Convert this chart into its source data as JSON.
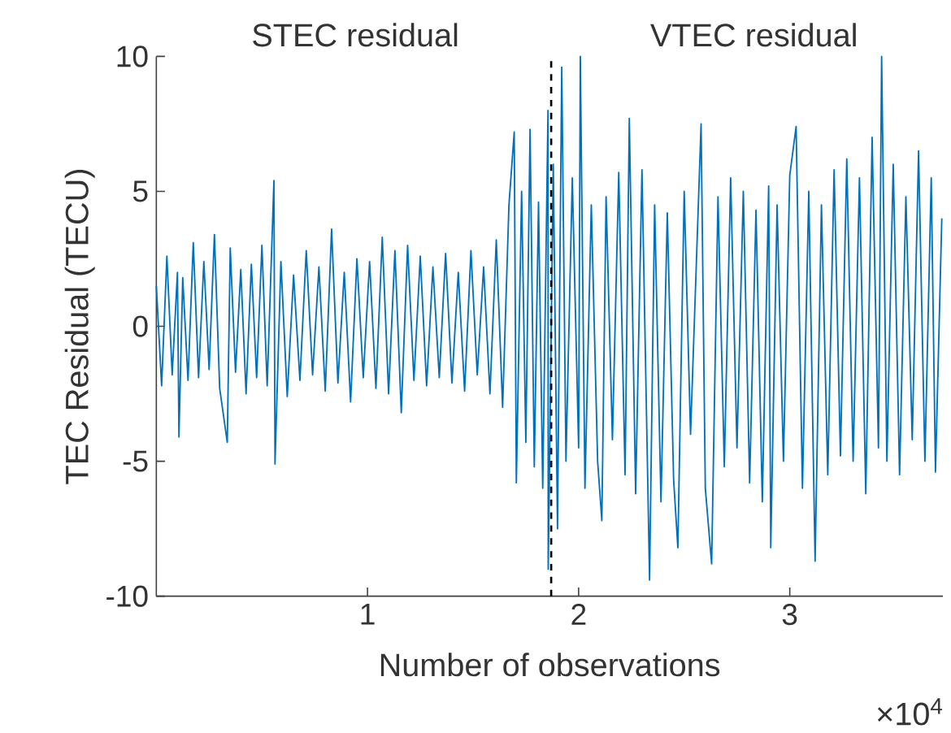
{
  "chart_data": {
    "type": "line",
    "xlabel": "Number of observations",
    "ylabel": "TEC Residual (TECU)",
    "annotations": [
      "STEC residual",
      "VTEC residual",
      "×10$^{4}$"
    ],
    "xlim": [
      0,
      3.725
    ],
    "ylim": [
      -10,
      10
    ],
    "xticks": [
      1,
      2,
      3
    ],
    "yticks": [
      -10,
      -5,
      0,
      5,
      10
    ],
    "grid": false,
    "line_style": "solid",
    "marker": "none",
    "ref_lines": [
      {
        "axis": "x",
        "value": 1.87,
        "color": "#000000",
        "line_style": "dashed"
      }
    ],
    "series": [
      {
        "color": "#0072bd",
        "x": [
          0,
          0.025,
          0.05,
          0.075,
          0.1,
          0.107,
          0.125,
          0.15,
          0.175,
          0.2,
          0.225,
          0.25,
          0.275,
          0.3,
          0.336,
          0.35,
          0.375,
          0.4,
          0.425,
          0.45,
          0.475,
          0.5,
          0.525,
          0.557,
          0.562,
          0.59,
          0.62,
          0.65,
          0.68,
          0.71,
          0.74,
          0.77,
          0.8,
          0.83,
          0.86,
          0.89,
          0.92,
          0.95,
          0.98,
          1.01,
          1.04,
          1.07,
          1.1,
          1.13,
          1.16,
          1.19,
          1.22,
          1.25,
          1.28,
          1.31,
          1.34,
          1.37,
          1.4,
          1.43,
          1.46,
          1.49,
          1.52,
          1.55,
          1.58,
          1.61,
          1.64,
          1.67,
          1.695,
          1.705,
          1.73,
          1.75,
          1.77,
          1.79,
          1.81,
          1.83,
          1.855,
          1.856,
          1.88,
          1.9,
          1.92,
          1.94,
          1.97,
          2.0,
          2.008,
          2.03,
          2.06,
          2.09,
          2.11,
          2.13,
          2.16,
          2.19,
          2.22,
          2.24,
          2.27,
          2.3,
          2.336,
          2.36,
          2.39,
          2.42,
          2.45,
          2.47,
          2.5,
          2.53,
          2.58,
          2.6,
          2.63,
          2.66,
          2.69,
          2.72,
          2.75,
          2.78,
          2.81,
          2.84,
          2.87,
          2.9,
          2.91,
          2.94,
          2.97,
          3.0,
          3.03,
          3.06,
          3.09,
          3.12,
          3.15,
          3.18,
          3.21,
          3.24,
          3.27,
          3.3,
          3.33,
          3.36,
          3.39,
          3.42,
          3.435,
          3.46,
          3.49,
          3.52,
          3.55,
          3.58,
          3.61,
          3.64,
          3.67,
          3.69,
          3.72
        ],
        "values": [
          1.5,
          -2.2,
          2.6,
          -1.8,
          2.0,
          -4.1,
          1.8,
          -2.0,
          3.1,
          -1.9,
          2.4,
          -1.6,
          3.4,
          -2.3,
          -4.3,
          2.9,
          -1.7,
          2.1,
          -2.5,
          2.3,
          -1.9,
          3.0,
          -2.2,
          5.4,
          -5.1,
          2.4,
          -2.6,
          1.9,
          -2.0,
          2.8,
          -1.8,
          2.2,
          -2.4,
          3.6,
          -2.1,
          2.0,
          -2.8,
          2.5,
          -1.9,
          2.4,
          -2.3,
          3.3,
          -2.5,
          2.8,
          -3.2,
          3.0,
          -2.0,
          2.6,
          -2.2,
          2.2,
          -1.9,
          2.7,
          -2.1,
          2.0,
          -2.4,
          2.8,
          -1.8,
          2.2,
          -2.5,
          3.2,
          -3.0,
          4.5,
          7.2,
          -5.8,
          5.0,
          -4.3,
          7.3,
          -5.2,
          4.6,
          -6.0,
          8.0,
          -9.0,
          6.0,
          -7.5,
          9.6,
          -5.0,
          5.5,
          -4.5,
          10.0,
          -6.0,
          4.5,
          -5.0,
          -7.2,
          4.8,
          -4.2,
          5.7,
          -5.5,
          7.7,
          -6.2,
          5.8,
          -9.4,
          4.5,
          -6.5,
          4.2,
          -5.7,
          -8.2,
          5.0,
          -4.0,
          7.5,
          -6.0,
          -8.8,
          4.8,
          -5.2,
          5.5,
          -4.5,
          5.0,
          -5.8,
          4.3,
          -6.5,
          5.2,
          -8.2,
          4.5,
          -5.0,
          5.6,
          7.4,
          -6.0,
          5.0,
          -8.7,
          4.5,
          -5.5,
          5.8,
          -4.8,
          6.2,
          -5.0,
          5.5,
          -6.2,
          7.0,
          -4.5,
          10.0,
          -5.0,
          6.0,
          -5.5,
          4.8,
          -4.2,
          6.5,
          -5.0,
          5.5,
          -5.4,
          4.0
        ]
      }
    ]
  }
}
